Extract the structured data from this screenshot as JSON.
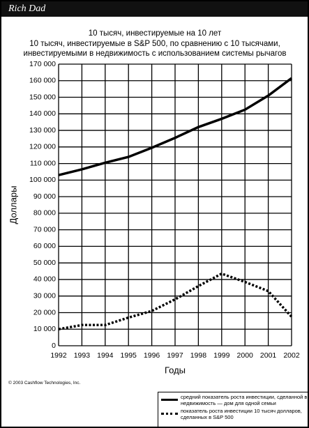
{
  "brand": "Rich Dad",
  "copyright": "© 2003 Cashflow Technologies, Inc.",
  "chart_data": {
    "type": "line",
    "title": "10 тысяч, инвестируемые на 10 лет",
    "subtitle": [
      "10 тысяч, инвестируемые в S&P 500, по сравнению с 10 тысячами,",
      "инвестируемыми в недвижимость с использованием системы рычагов"
    ],
    "x_label": "Годы",
    "y_label": "Доллары",
    "x": [
      1992,
      1993,
      1994,
      1995,
      1996,
      1997,
      1998,
      1999,
      2000,
      2001,
      2002
    ],
    "xlim": [
      1992,
      2002
    ],
    "xticks": [
      1992,
      1993,
      1994,
      1995,
      1996,
      1997,
      1998,
      1999,
      2000,
      2001,
      2002
    ],
    "ylim": [
      0,
      170000
    ],
    "yticks": [
      0,
      {
        "value": 10000,
        "label": "10 000"
      },
      {
        "value": 20000,
        "label": "20 000"
      },
      {
        "value": 30000,
        "label": "30 000"
      },
      {
        "value": 40000,
        "label": "40 000"
      },
      {
        "value": 50000,
        "label": "50 000"
      },
      {
        "value": 60000,
        "label": "60 000"
      },
      {
        "value": 70000,
        "label": "70 000"
      },
      {
        "value": 80000,
        "label": "80 000"
      },
      {
        "value": 90000,
        "label": "90 000"
      },
      {
        "value": 100000,
        "label": "100 000"
      },
      {
        "value": 110000,
        "label": "110 000"
      },
      {
        "value": 120000,
        "label": "120 000"
      },
      {
        "value": 130000,
        "label": "130 000"
      },
      {
        "value": 140000,
        "label": "140 000"
      },
      {
        "value": 150000,
        "label": "150 000"
      },
      {
        "value": 160000,
        "label": "160 000"
      },
      {
        "value": 170000,
        "label": "170 000"
      }
    ],
    "grid": true,
    "series": [
      {
        "name": "средний показатель роста инвестиции, сделанной в недвижимость — дом для одной семьи",
        "color": "#000000",
        "style": "solid",
        "values": [
          103000,
          106500,
          110500,
          114000,
          119500,
          125500,
          132000,
          137000,
          142500,
          151000,
          161500
        ]
      },
      {
        "name": "показатель роста инвестиции 10 тысяч долларов, сделанных в S&P 500",
        "color": "#000000",
        "style": "dotted",
        "values": [
          10000,
          12500,
          12500,
          17000,
          21000,
          28000,
          36000,
          43500,
          38500,
          33000,
          17500
        ]
      }
    ]
  }
}
